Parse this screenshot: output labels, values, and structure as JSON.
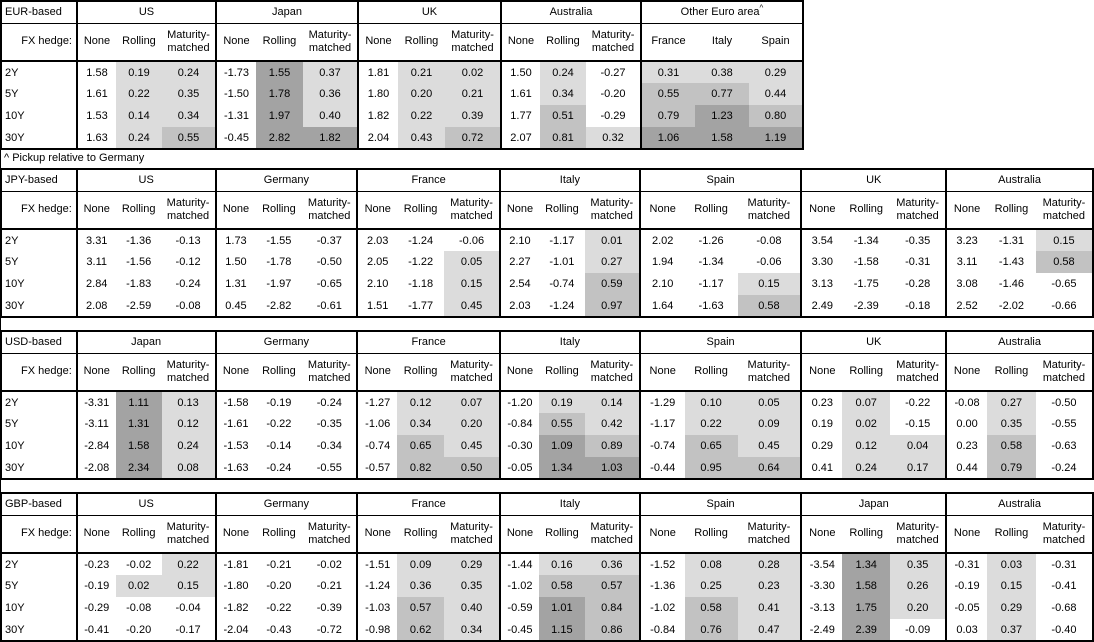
{
  "footnote": "^ Pickup relative to Germany",
  "shared": {
    "fx_hedge_label": "FX hedge:",
    "maturities": [
      "2Y",
      "5Y",
      "10Y",
      "30Y"
    ],
    "hedge_columns": [
      "None",
      "Rolling",
      "Maturity-matched"
    ]
  },
  "shade_colors": {
    "light": "#dcdcdc",
    "medium": "#c2c2c2",
    "dark": "#a3a3a3",
    "none": "#ffffff"
  },
  "tables": [
    {
      "base_label": "EUR-based",
      "groups": [
        {
          "name": "US",
          "columns": [
            "None",
            "Rolling",
            "Maturity-matched"
          ],
          "rows": [
            [
              "1.58",
              "0.19",
              "0.24"
            ],
            [
              "1.61",
              "0.22",
              "0.35"
            ],
            [
              "1.53",
              "0.14",
              "0.34"
            ],
            [
              "1.63",
              "0.24",
              "0.55"
            ]
          ]
        },
        {
          "name": "Japan",
          "columns": [
            "None",
            "Rolling",
            "Maturity-matched"
          ],
          "rows": [
            [
              "-1.73",
              "1.55",
              "0.37"
            ],
            [
              "-1.50",
              "1.78",
              "0.36"
            ],
            [
              "-1.31",
              "1.97",
              "0.40"
            ],
            [
              "-0.45",
              "2.82",
              "1.82"
            ]
          ]
        },
        {
          "name": "UK",
          "columns": [
            "None",
            "Rolling",
            "Maturity-matched"
          ],
          "rows": [
            [
              "1.81",
              "0.21",
              "0.02"
            ],
            [
              "1.80",
              "0.20",
              "0.21"
            ],
            [
              "1.82",
              "0.22",
              "0.39"
            ],
            [
              "2.04",
              "0.43",
              "0.72"
            ]
          ]
        },
        {
          "name": "Australia",
          "columns": [
            "None",
            "Rolling",
            "Maturity-matched"
          ],
          "rows": [
            [
              "1.50",
              "0.24",
              "-0.27"
            ],
            [
              "1.61",
              "0.34",
              "-0.20"
            ],
            [
              "1.77",
              "0.51",
              "-0.29"
            ],
            [
              "2.07",
              "0.81",
              "0.32"
            ]
          ]
        },
        {
          "name": "Other Euro area",
          "superscript": "^",
          "columns": [
            "France",
            "Italy",
            "Spain"
          ],
          "rows": [
            [
              "0.31",
              "0.38",
              "0.29"
            ],
            [
              "0.55",
              "0.77",
              "0.44"
            ],
            [
              "0.79",
              "1.23",
              "0.80"
            ],
            [
              "1.06",
              "1.58",
              "1.19"
            ]
          ]
        }
      ]
    },
    {
      "base_label": "JPY-based",
      "groups": [
        {
          "name": "US",
          "columns": [
            "None",
            "Rolling",
            "Maturity-matched"
          ],
          "rows": [
            [
              "3.31",
              "-1.36",
              "-0.13"
            ],
            [
              "3.11",
              "-1.56",
              "-0.12"
            ],
            [
              "2.84",
              "-1.83",
              "-0.24"
            ],
            [
              "2.08",
              "-2.59",
              "-0.08"
            ]
          ]
        },
        {
          "name": "Germany",
          "columns": [
            "None",
            "Rolling",
            "Maturity-matched"
          ],
          "rows": [
            [
              "1.73",
              "-1.55",
              "-0.37"
            ],
            [
              "1.50",
              "-1.78",
              "-0.50"
            ],
            [
              "1.31",
              "-1.97",
              "-0.65"
            ],
            [
              "0.45",
              "-2.82",
              "-0.61"
            ]
          ]
        },
        {
          "name": "France",
          "columns": [
            "None",
            "Rolling",
            "Maturity-matched"
          ],
          "rows": [
            [
              "2.03",
              "-1.24",
              "-0.06"
            ],
            [
              "2.05",
              "-1.22",
              "0.05"
            ],
            [
              "2.10",
              "-1.18",
              "0.15"
            ],
            [
              "1.51",
              "-1.77",
              "0.45"
            ]
          ]
        },
        {
          "name": "Italy",
          "columns": [
            "None",
            "Rolling",
            "Maturity-matched"
          ],
          "rows": [
            [
              "2.10",
              "-1.17",
              "0.01"
            ],
            [
              "2.27",
              "-1.01",
              "0.27"
            ],
            [
              "2.54",
              "-0.74",
              "0.59"
            ],
            [
              "2.03",
              "-1.24",
              "0.97"
            ]
          ]
        },
        {
          "name": "Spain",
          "columns": [
            "None",
            "Rolling",
            "Maturity-matched"
          ],
          "rows": [
            [
              "2.02",
              "-1.26",
              "-0.08"
            ],
            [
              "1.94",
              "-1.34",
              "-0.06"
            ],
            [
              "2.10",
              "-1.17",
              "0.15"
            ],
            [
              "1.64",
              "-1.63",
              "0.58"
            ]
          ]
        },
        {
          "name": "UK",
          "columns": [
            "None",
            "Rolling",
            "Maturity-matched"
          ],
          "rows": [
            [
              "3.54",
              "-1.34",
              "-0.35"
            ],
            [
              "3.30",
              "-1.58",
              "-0.31"
            ],
            [
              "3.13",
              "-1.75",
              "-0.28"
            ],
            [
              "2.49",
              "-2.39",
              "-0.18"
            ]
          ]
        },
        {
          "name": "Australia",
          "columns": [
            "None",
            "Rolling",
            "Maturity-matched"
          ],
          "rows": [
            [
              "3.23",
              "-1.31",
              "0.15"
            ],
            [
              "3.11",
              "-1.43",
              "0.58"
            ],
            [
              "3.08",
              "-1.46",
              "-0.65"
            ],
            [
              "2.52",
              "-2.02",
              "-0.66"
            ]
          ]
        }
      ]
    },
    {
      "base_label": "USD-based",
      "groups": [
        {
          "name": "Japan",
          "columns": [
            "None",
            "Rolling",
            "Maturity-matched"
          ],
          "rows": [
            [
              "-3.31",
              "1.11",
              "0.13"
            ],
            [
              "-3.11",
              "1.31",
              "0.12"
            ],
            [
              "-2.84",
              "1.58",
              "0.24"
            ],
            [
              "-2.08",
              "2.34",
              "0.08"
            ]
          ]
        },
        {
          "name": "Germany",
          "columns": [
            "None",
            "Rolling",
            "Maturity-matched"
          ],
          "rows": [
            [
              "-1.58",
              "-0.19",
              "-0.24"
            ],
            [
              "-1.61",
              "-0.22",
              "-0.35"
            ],
            [
              "-1.53",
              "-0.14",
              "-0.34"
            ],
            [
              "-1.63",
              "-0.24",
              "-0.55"
            ]
          ]
        },
        {
          "name": "France",
          "columns": [
            "None",
            "Rolling",
            "Maturity-matched"
          ],
          "rows": [
            [
              "-1.27",
              "0.12",
              "0.07"
            ],
            [
              "-1.06",
              "0.34",
              "0.20"
            ],
            [
              "-0.74",
              "0.65",
              "0.45"
            ],
            [
              "-0.57",
              "0.82",
              "0.50"
            ]
          ]
        },
        {
          "name": "Italy",
          "columns": [
            "None",
            "Rolling",
            "Maturity-matched"
          ],
          "rows": [
            [
              "-1.20",
              "0.19",
              "0.14"
            ],
            [
              "-0.84",
              "0.55",
              "0.42"
            ],
            [
              "-0.30",
              "1.09",
              "0.89"
            ],
            [
              "-0.05",
              "1.34",
              "1.03"
            ]
          ]
        },
        {
          "name": "Spain",
          "columns": [
            "None",
            "Rolling",
            "Maturity-matched"
          ],
          "rows": [
            [
              "-1.29",
              "0.10",
              "0.05"
            ],
            [
              "-1.17",
              "0.22",
              "0.09"
            ],
            [
              "-0.74",
              "0.65",
              "0.45"
            ],
            [
              "-0.44",
              "0.95",
              "0.64"
            ]
          ]
        },
        {
          "name": "UK",
          "columns": [
            "None",
            "Rolling",
            "Maturity-matched"
          ],
          "rows": [
            [
              "0.23",
              "0.07",
              "-0.22"
            ],
            [
              "0.19",
              "0.02",
              "-0.15"
            ],
            [
              "0.29",
              "0.12",
              "0.04"
            ],
            [
              "0.41",
              "0.24",
              "0.17"
            ]
          ]
        },
        {
          "name": "Australia",
          "columns": [
            "None",
            "Rolling",
            "Maturity-matched"
          ],
          "rows": [
            [
              "-0.08",
              "0.27",
              "-0.50"
            ],
            [
              "0.00",
              "0.35",
              "-0.55"
            ],
            [
              "0.23",
              "0.58",
              "-0.63"
            ],
            [
              "0.44",
              "0.79",
              "-0.24"
            ]
          ]
        }
      ]
    },
    {
      "base_label": "GBP-based",
      "groups": [
        {
          "name": "US",
          "columns": [
            "None",
            "Rolling",
            "Maturity-matched"
          ],
          "rows": [
            [
              "-0.23",
              "-0.02",
              "0.22"
            ],
            [
              "-0.19",
              "0.02",
              "0.15"
            ],
            [
              "-0.29",
              "-0.08",
              "-0.04"
            ],
            [
              "-0.41",
              "-0.20",
              "-0.17"
            ]
          ]
        },
        {
          "name": "Germany",
          "columns": [
            "None",
            "Rolling",
            "Maturity-matched"
          ],
          "rows": [
            [
              "-1.81",
              "-0.21",
              "-0.02"
            ],
            [
              "-1.80",
              "-0.20",
              "-0.21"
            ],
            [
              "-1.82",
              "-0.22",
              "-0.39"
            ],
            [
              "-2.04",
              "-0.43",
              "-0.72"
            ]
          ]
        },
        {
          "name": "France",
          "columns": [
            "None",
            "Rolling",
            "Maturity-matched"
          ],
          "rows": [
            [
              "-1.51",
              "0.09",
              "0.29"
            ],
            [
              "-1.24",
              "0.36",
              "0.35"
            ],
            [
              "-1.03",
              "0.57",
              "0.40"
            ],
            [
              "-0.98",
              "0.62",
              "0.34"
            ]
          ]
        },
        {
          "name": "Italy",
          "columns": [
            "None",
            "Rolling",
            "Maturity-matched"
          ],
          "rows": [
            [
              "-1.44",
              "0.16",
              "0.36"
            ],
            [
              "-1.02",
              "0.58",
              "0.57"
            ],
            [
              "-0.59",
              "1.01",
              "0.84"
            ],
            [
              "-0.45",
              "1.15",
              "0.86"
            ]
          ]
        },
        {
          "name": "Spain",
          "columns": [
            "None",
            "Rolling",
            "Maturity-matched"
          ],
          "rows": [
            [
              "-1.52",
              "0.08",
              "0.28"
            ],
            [
              "-1.36",
              "0.25",
              "0.23"
            ],
            [
              "-1.02",
              "0.58",
              "0.41"
            ],
            [
              "-0.84",
              "0.76",
              "0.47"
            ]
          ]
        },
        {
          "name": "Japan",
          "columns": [
            "None",
            "Rolling",
            "Maturity-matched"
          ],
          "rows": [
            [
              "-3.54",
              "1.34",
              "0.35"
            ],
            [
              "-3.30",
              "1.58",
              "0.26"
            ],
            [
              "-3.13",
              "1.75",
              "0.20"
            ],
            [
              "-2.49",
              "2.39",
              "-0.09"
            ]
          ]
        },
        {
          "name": "Australia",
          "columns": [
            "None",
            "Rolling",
            "Maturity-matched"
          ],
          "rows": [
            [
              "-0.31",
              "0.03",
              "-0.31"
            ],
            [
              "-0.19",
              "0.15",
              "-0.41"
            ],
            [
              "-0.05",
              "0.29",
              "-0.68"
            ],
            [
              "0.03",
              "0.37",
              "-0.40"
            ]
          ]
        }
      ]
    }
  ]
}
